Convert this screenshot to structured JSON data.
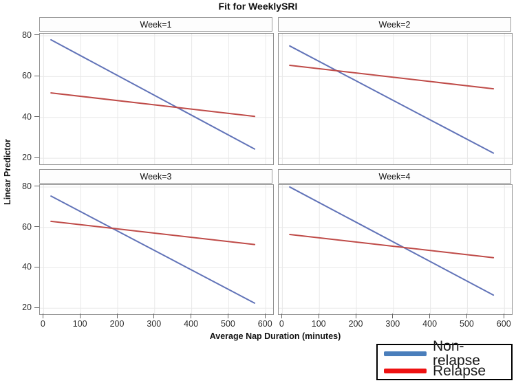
{
  "title": "Fit for WeeklySRI",
  "x_axis": {
    "label": "Average Nap Duration (minutes)",
    "ticks": [
      0,
      100,
      200,
      300,
      400,
      500,
      600
    ]
  },
  "y_axis": {
    "label": "Linear Predictor",
    "ticks": [
      20,
      40,
      60,
      80
    ]
  },
  "legend": {
    "items": [
      {
        "label": "Non-relapse",
        "color": "#4a7ebb"
      },
      {
        "label": "Relapse",
        "color": "#ee1111"
      }
    ]
  },
  "colors": {
    "grid": "#e8e8e8",
    "panel_border": "#8f8f8f",
    "non_relapse_line": "#6173b8",
    "relapse_line": "#bf4b48"
  },
  "chart_data": {
    "type": "line",
    "layout": "2x2 panel (small multiples)",
    "xlabel": "Average Nap Duration (minutes)",
    "ylabel": "Linear Predictor",
    "xlim": [
      -10,
      620
    ],
    "ylim": [
      17,
      81
    ],
    "grid": true,
    "legend_position": "bottom-right",
    "panels": [
      {
        "label": "Week=1",
        "series": [
          {
            "name": "Non-relapse",
            "color": "#6173b8",
            "x": [
              20,
              570
            ],
            "y": [
              78,
              24.5
            ]
          },
          {
            "name": "Relapse",
            "color": "#bf4b48",
            "x": [
              20,
              570
            ],
            "y": [
              52,
              40.5
            ]
          }
        ]
      },
      {
        "label": "Week=2",
        "series": [
          {
            "name": "Non-relapse",
            "color": "#6173b8",
            "x": [
              20,
              570
            ],
            "y": [
              75,
              22.5
            ]
          },
          {
            "name": "Relapse",
            "color": "#bf4b48",
            "x": [
              20,
              570
            ],
            "y": [
              65.5,
              54
            ]
          }
        ]
      },
      {
        "label": "Week=3",
        "series": [
          {
            "name": "Non-relapse",
            "color": "#6173b8",
            "x": [
              20,
              570
            ],
            "y": [
              75.5,
              22.5
            ]
          },
          {
            "name": "Relapse",
            "color": "#bf4b48",
            "x": [
              20,
              570
            ],
            "y": [
              63,
              51.5
            ]
          }
        ]
      },
      {
        "label": "Week=4",
        "series": [
          {
            "name": "Non-relapse",
            "color": "#6173b8",
            "x": [
              20,
              570
            ],
            "y": [
              80,
              26.5
            ]
          },
          {
            "name": "Relapse",
            "color": "#bf4b48",
            "x": [
              20,
              570
            ],
            "y": [
              56.5,
              45
            ]
          }
        ]
      }
    ]
  }
}
